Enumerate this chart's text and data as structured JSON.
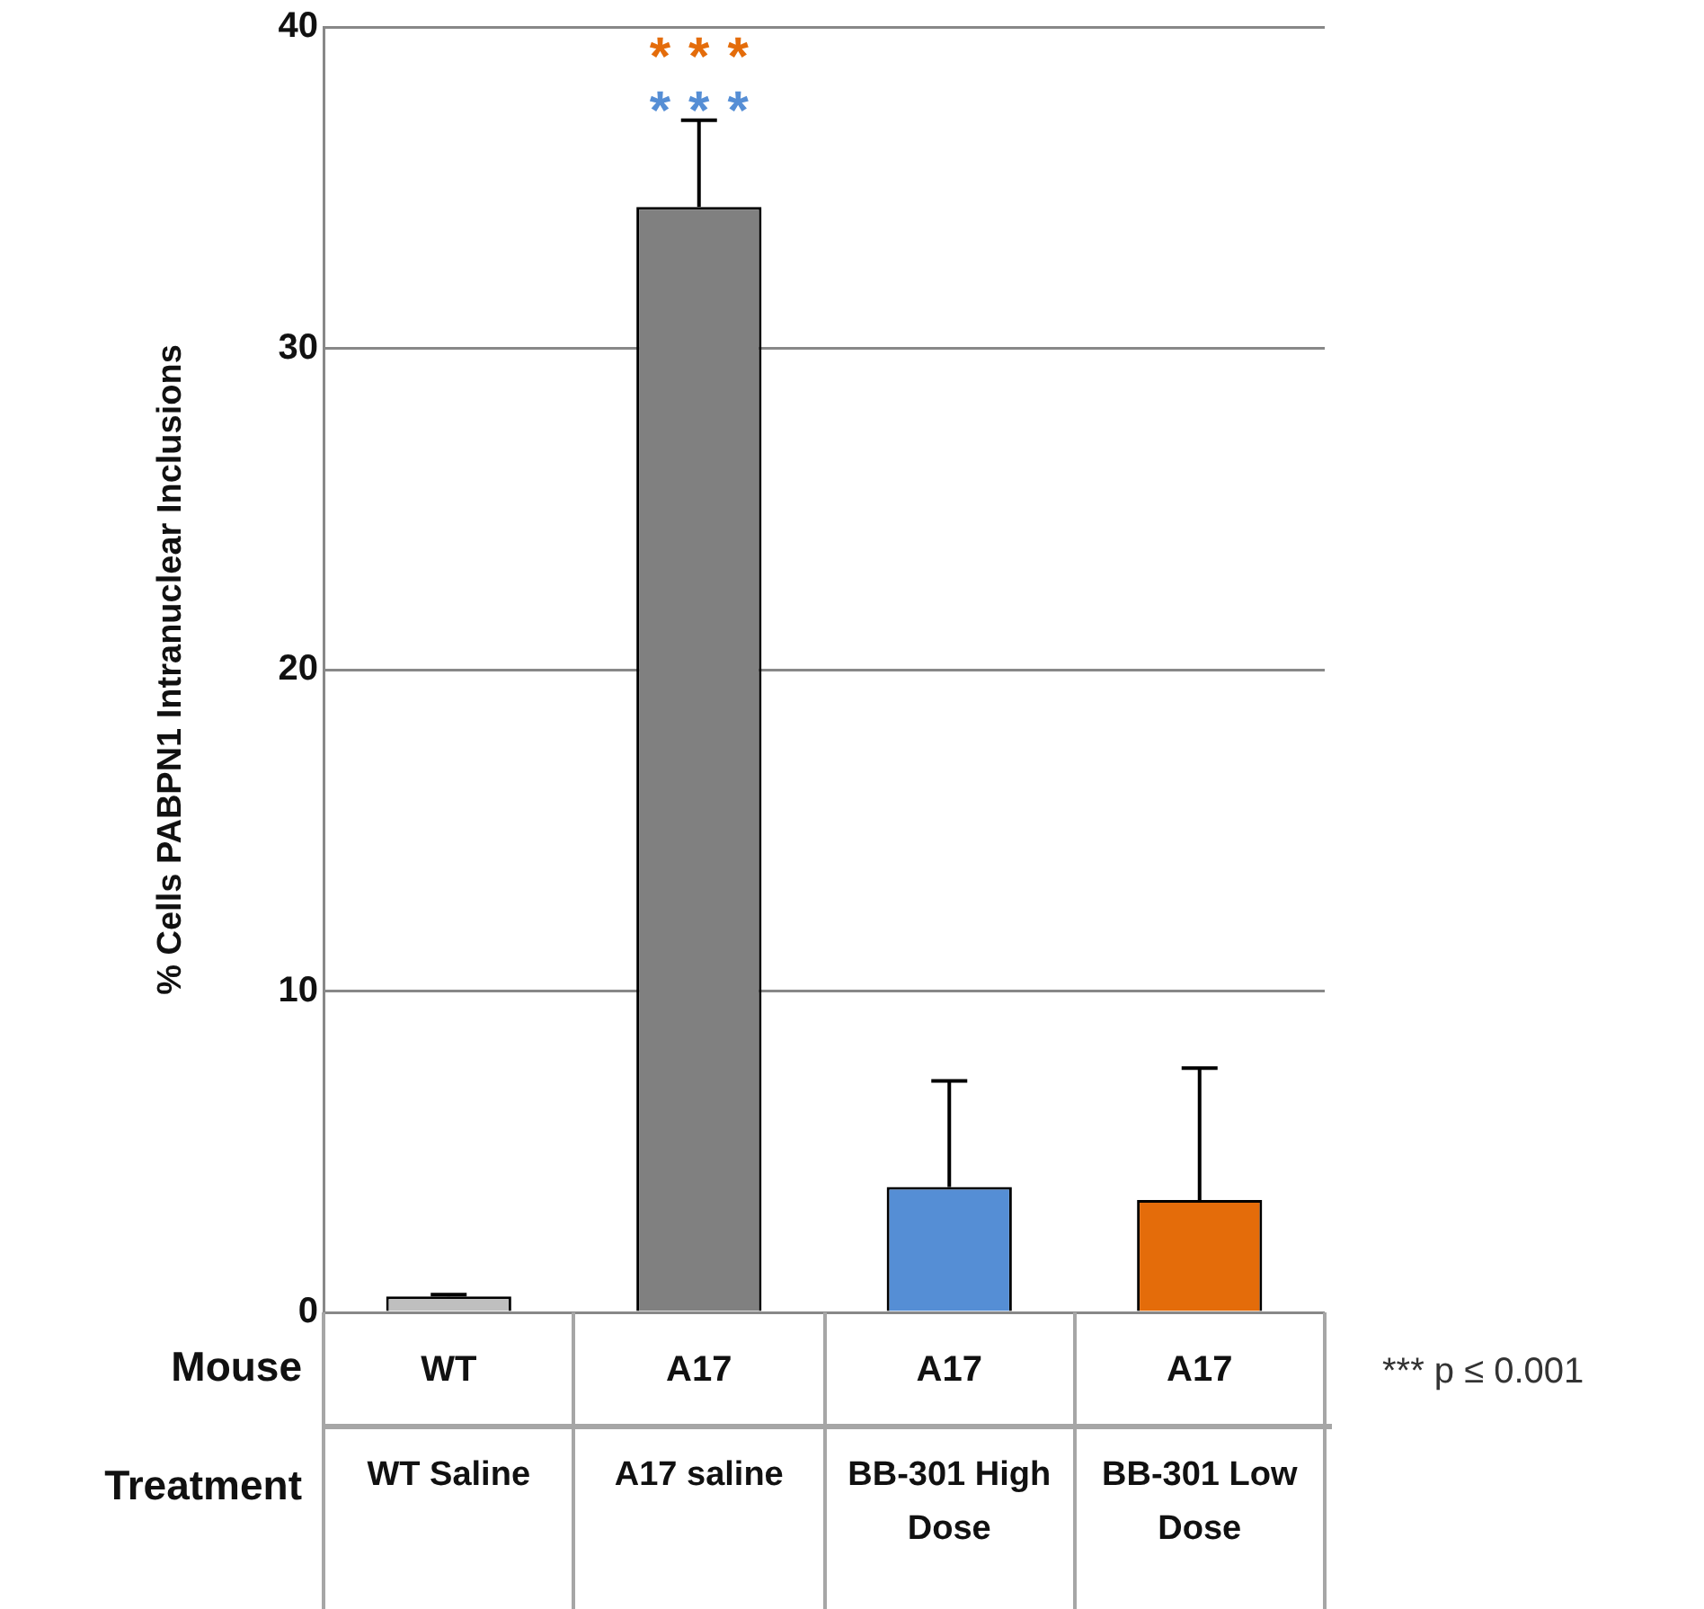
{
  "chart_data": {
    "type": "bar",
    "ylabel": "% Cells PABPN1 Intranuclear Inclusions",
    "xlabel": "Treatment",
    "categories": [
      "WT Saline",
      "A17 saline",
      "BB-301 High Dose",
      "BB-301 Low Dose"
    ],
    "values": [
      0.5,
      34.4,
      3.9,
      3.5
    ],
    "colors": [
      "#bfbfbf",
      "#808080",
      "#558ed5",
      "#e46c0a"
    ],
    "errors": [
      [
        0.5,
        0.55
      ],
      [
        34.4,
        37.1
      ],
      [
        3.9,
        7.2
      ],
      [
        3.5,
        7.6
      ]
    ],
    "ylim": [
      0,
      40
    ],
    "yticks": [
      0,
      10,
      20,
      30,
      40
    ],
    "grid": "y",
    "legend": false,
    "annotations": [
      "***",
      "***",
      "Mouse",
      "WT",
      "A17",
      "A17",
      "A17",
      "*** p ≤ 0.001"
    ]
  }
}
